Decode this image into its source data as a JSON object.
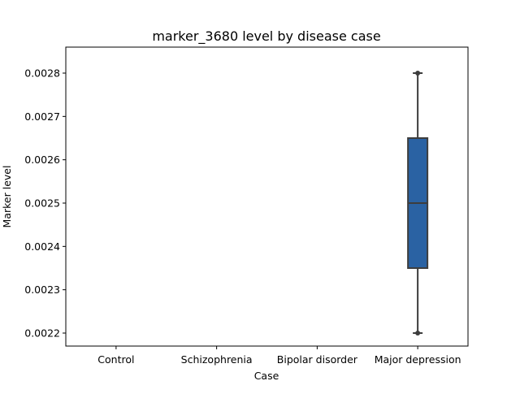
{
  "chart_data": {
    "type": "box",
    "title": "marker_3680 level by disease case",
    "xlabel": "Case",
    "ylabel": "Marker level",
    "categories": [
      "Control",
      "Schizophrenia",
      "Bipolar disorder",
      "Major depression"
    ],
    "ylim": [
      0.00217,
      0.00286
    ],
    "yticks": [
      0.0022,
      0.0023,
      0.0024,
      0.0025,
      0.0026,
      0.0027,
      0.0028
    ],
    "ytick_labels": [
      "0.0022",
      "0.0023",
      "0.0024",
      "0.0025",
      "0.0026",
      "0.0027",
      "0.0028"
    ],
    "boxes": [
      {
        "category": "Major depression",
        "min": 0.0022,
        "q1": 0.00235,
        "median": 0.0025,
        "q3": 0.00265,
        "max": 0.0028,
        "outliers": [
          0.0022,
          0.0028
        ]
      }
    ],
    "grid": false,
    "colors": {
      "box_fill": "#2a62a3",
      "box_edge": "#3d3d3d",
      "axes": "#000000",
      "background": "#ffffff"
    }
  }
}
